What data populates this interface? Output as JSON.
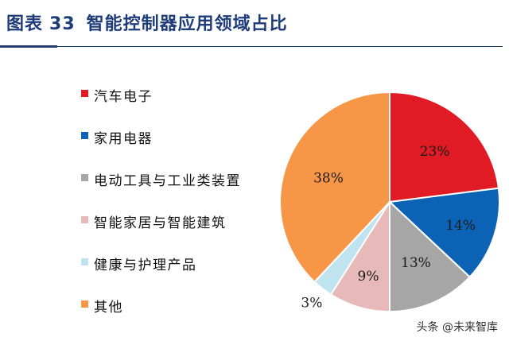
{
  "header": {
    "label": "图表",
    "number": "33",
    "title": "智能控制器应用领域占比"
  },
  "chart_data": {
    "type": "pie",
    "title": "智能控制器应用领域占比",
    "unit": "%",
    "legend_position": "left",
    "slices": [
      {
        "name": "汽车电子",
        "value": 23,
        "label": "23%",
        "color": "#e01b24"
      },
      {
        "name": "家用电器",
        "value": 14,
        "label": "14%",
        "color": "#0c62b5"
      },
      {
        "name": "电动工具与工业类装置",
        "value": 13,
        "label": "13%",
        "color": "#a6a6a6"
      },
      {
        "name": "智能家居与智能建筑",
        "value": 9,
        "label": "9%",
        "color": "#e8b9b9"
      },
      {
        "name": "健康与护理产品",
        "value": 3,
        "label": "3%",
        "color": "#bfe3ef"
      },
      {
        "name": "其他",
        "value": 38,
        "label": "38%",
        "color": "#f79646"
      }
    ]
  },
  "watermark": "头条 @未来智库"
}
